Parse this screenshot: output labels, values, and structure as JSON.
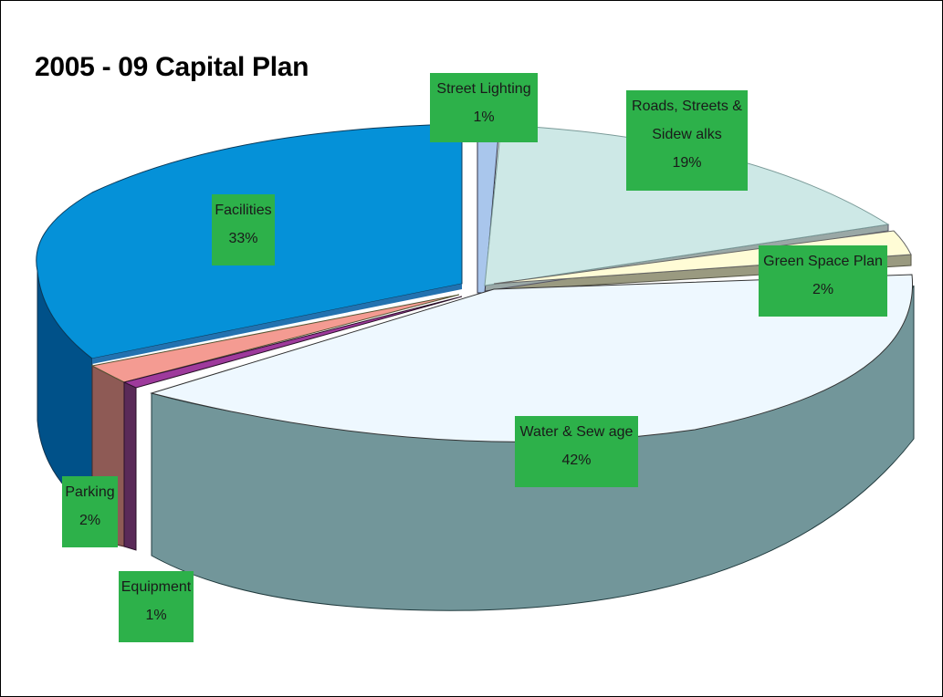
{
  "chart_data": {
    "type": "pie",
    "title": "2005 - 09 Capital Plan",
    "slices": [
      {
        "label": "Street Lighting",
        "value": 1,
        "value_label": "1%",
        "color": "#a9c6ec"
      },
      {
        "label": "Roads, Streets & Sidew alks",
        "value": 19,
        "value_label": "19%",
        "color": "#cde8e6"
      },
      {
        "label": "Green Space Plan",
        "value": 2,
        "value_label": "2%",
        "color": "#fffcd6"
      },
      {
        "label": "Water & Sew age",
        "value": 42,
        "value_label": "42%",
        "color": "#eef8ff"
      },
      {
        "label": "Equipment",
        "value": 1,
        "value_label": "1%",
        "color": "#7b2a7e"
      },
      {
        "label": "Parking",
        "value": 2,
        "value_label": "2%",
        "color": "#f49b92"
      },
      {
        "label": "Facilities",
        "value": 33,
        "value_label": "33%",
        "color": "#0591d8"
      }
    ],
    "label_color": "#2db14a",
    "legend": "none",
    "style": "3d-exploded"
  }
}
